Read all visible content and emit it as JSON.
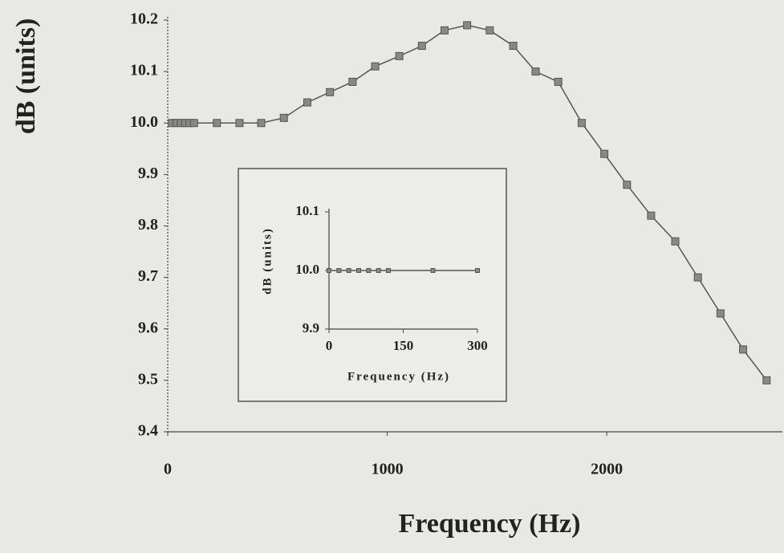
{
  "chart_data": [
    {
      "type": "line",
      "x_label": "Frequency (Hz)",
      "y_label": "dB (units)",
      "x": [
        20,
        40,
        60,
        80,
        100,
        120,
        224,
        327,
        426,
        529,
        636,
        739,
        842,
        945,
        1055,
        1158,
        1261,
        1364,
        1467,
        1574,
        1676,
        1779,
        1886,
        1989,
        2092,
        2202,
        2312,
        2415,
        2518,
        2621,
        2728
      ],
      "series": [
        {
          "color": "#555555",
          "values": [
            10.0,
            10.0,
            10.0,
            10.0,
            10.0,
            10.0,
            10.0,
            10.0,
            10.0,
            10.01,
            10.04,
            10.06,
            10.08,
            10.11,
            10.13,
            10.15,
            10.18,
            10.19,
            10.18,
            10.15,
            10.1,
            10.08,
            10.0,
            9.94,
            9.88,
            9.82,
            9.77,
            9.7,
            9.63,
            9.56,
            9.5
          ]
        }
      ],
      "xlim": [
        0,
        2800
      ],
      "xticks": [
        0,
        1000,
        2000
      ],
      "ylim": [
        9.4,
        10.2
      ],
      "yticks": [
        9.4,
        9.5,
        9.6,
        9.7,
        9.8,
        9.9,
        {
          "value": 10,
          "label": "10.0"
        },
        10.1,
        10.2
      ]
    },
    {
      "type": "line",
      "x_label": "Frequency (Hz)",
      "y_label": "dB (units)",
      "x": [
        0,
        20,
        40,
        60,
        80,
        100,
        120,
        210,
        300
      ],
      "series": [
        {
          "color": "#555555",
          "values": [
            10,
            10,
            10,
            10,
            10,
            10,
            10,
            10,
            10
          ]
        }
      ],
      "xlim": [
        0,
        300
      ],
      "xticks": [
        0,
        150,
        300
      ],
      "ylim": [
        9.9,
        10.1
      ],
      "yticks": [
        9.9,
        {
          "value": 10,
          "label": "10.0"
        },
        10.1
      ]
    }
  ]
}
